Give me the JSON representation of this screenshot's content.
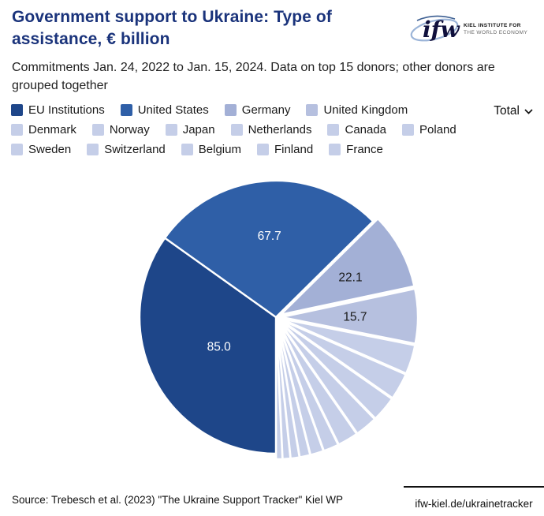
{
  "header": {
    "title": "Government support to Ukraine: Type of assistance, € billion",
    "subtitle": "Commitments Jan. 24, 2022 to Jan. 15, 2024. Data on top 15 donors; other donors are grouped together"
  },
  "logo": {
    "wordmark": "ifw",
    "line1": "KIEL INSTITUTE FOR",
    "line2": "THE WORLD ECONOMY"
  },
  "controls": {
    "view_selector": "Total"
  },
  "chart_data": {
    "type": "pie",
    "title": "Government support to Ukraine: Type of assistance, € billion",
    "unit": "€ billion",
    "legend_position": "top",
    "start_angle_deg": 180,
    "direction": "clockwise",
    "slices": [
      {
        "name": "EU Institutions",
        "value": 85.0,
        "data_label": "85.0",
        "color": "#1e4689",
        "label_color": "#ffffff"
      },
      {
        "name": "United States",
        "value": 67.7,
        "data_label": "67.7",
        "color": "#2f5fa7",
        "label_color": "#ffffff"
      },
      {
        "name": "Germany",
        "value": 22.1,
        "data_label": "22.1",
        "color": "#a3b0d6",
        "label_color": "#1a1a1a"
      },
      {
        "name": "United Kingdom",
        "value": 15.7,
        "data_label": "15.7",
        "color": "#b6c0df",
        "label_color": "#1a1a1a"
      },
      {
        "name": "Denmark",
        "value": 8.4,
        "data_label": "",
        "color": "#c5cee8"
      },
      {
        "name": "Norway",
        "value": 7.7,
        "data_label": "",
        "color": "#c5cee8"
      },
      {
        "name": "Japan",
        "value": 7.3,
        "data_label": "",
        "color": "#c5cee8"
      },
      {
        "name": "Netherlands",
        "value": 6.4,
        "data_label": "",
        "color": "#c5cee8"
      },
      {
        "name": "Canada",
        "value": 5.9,
        "data_label": "",
        "color": "#c5cee8"
      },
      {
        "name": "Poland",
        "value": 4.4,
        "data_label": "",
        "color": "#c5cee8"
      },
      {
        "name": "Sweden",
        "value": 3.8,
        "data_label": "",
        "color": "#c5cee8"
      },
      {
        "name": "Switzerland",
        "value": 3.0,
        "data_label": "",
        "color": "#c5cee8"
      },
      {
        "name": "Belgium",
        "value": 2.5,
        "data_label": "",
        "color": "#c5cee8"
      },
      {
        "name": "Finland",
        "value": 2.2,
        "data_label": "",
        "color": "#c5cee8"
      },
      {
        "name": "France",
        "value": 1.8,
        "data_label": "",
        "color": "#c5cee8"
      }
    ]
  },
  "footer": {
    "source": "Source: Trebesch et al. (2023) \"The Ukraine Support Tracker\" Kiel WP",
    "link": "ifw-kiel.de/ukrainetracker"
  }
}
